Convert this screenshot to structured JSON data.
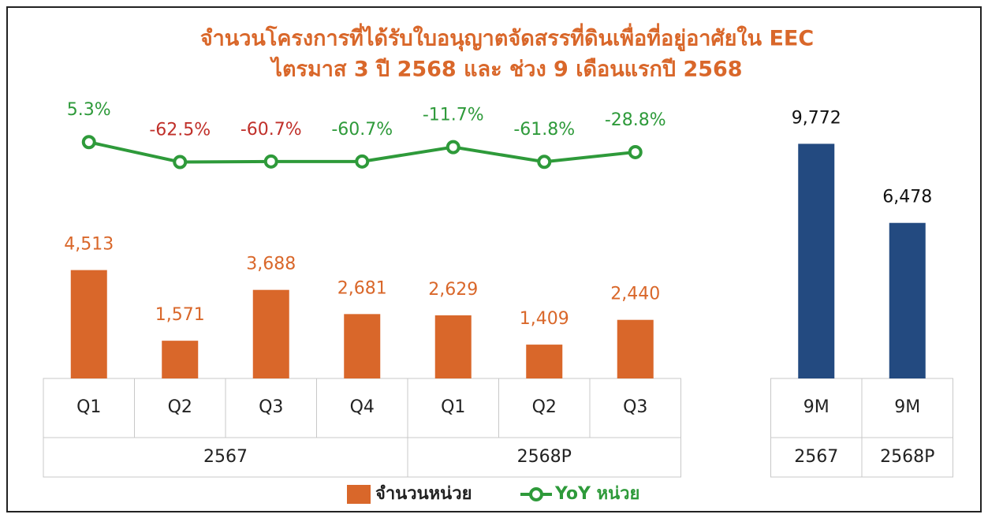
{
  "chart_data": {
    "type": "bar_line",
    "title": "จำนวนโครงการที่ได้รับใบอนุญาตจัดสรรที่ดินเพื่อที่อยู่อาศัยใน EEC",
    "subtitle": "ไตรมาส 3 ปี 2568 และ ช่วง 9 เดือนแรกปี 2568",
    "groups": [
      {
        "name": "2567",
        "categories": [
          "Q1",
          "Q2",
          "Q3",
          "Q4"
        ]
      },
      {
        "name": "2568P",
        "categories": [
          "Q1",
          "Q2",
          "Q3"
        ]
      },
      {
        "name": "2567",
        "categories": [
          "9M"
        ]
      },
      {
        "name": "2568P",
        "categories": [
          "9M"
        ]
      }
    ],
    "series": [
      {
        "name": "จำนวนหน่วย",
        "kind": "bar",
        "color": "#d9672a",
        "colors": [
          "#d9672a",
          "#d9672a",
          "#d9672a",
          "#d9672a",
          "#d9672a",
          "#d9672a",
          "#d9672a",
          "#234a80",
          "#234a80"
        ],
        "label_colors": [
          "#d9672a",
          "#d9672a",
          "#d9672a",
          "#d9672a",
          "#d9672a",
          "#d9672a",
          "#d9672a",
          "#111111",
          "#111111"
        ],
        "values": [
          4513,
          1571,
          3688,
          2681,
          2629,
          1409,
          2440,
          9772,
          6478
        ],
        "value_labels": [
          "4,513",
          "1,571",
          "3,688",
          "2,681",
          "2,629",
          "1,409",
          "2,440",
          "9,772",
          "6,478"
        ]
      },
      {
        "name": "YoY หน่วย",
        "kind": "line",
        "axis": "y2",
        "color": "#2e9a3a",
        "label_colors": [
          "#2e9a3a",
          "#c0302a",
          "#c0302a",
          "#2e9a3a",
          "#2e9a3a",
          "#2e9a3a",
          "#2e9a3a",
          null,
          null
        ],
        "values": [
          5.3,
          -62.5,
          -60.7,
          -60.7,
          -11.7,
          -61.8,
          -28.8,
          null,
          null
        ],
        "value_labels": [
          "5.3%",
          "-62.5%",
          "-60.7%",
          "-60.7%",
          "-11.7%",
          "-61.8%",
          "-28.8%",
          null,
          null
        ]
      }
    ],
    "ylim": [
      0,
      11000
    ],
    "y2lim": [
      -800,
      100
    ],
    "legend": "bottom"
  }
}
